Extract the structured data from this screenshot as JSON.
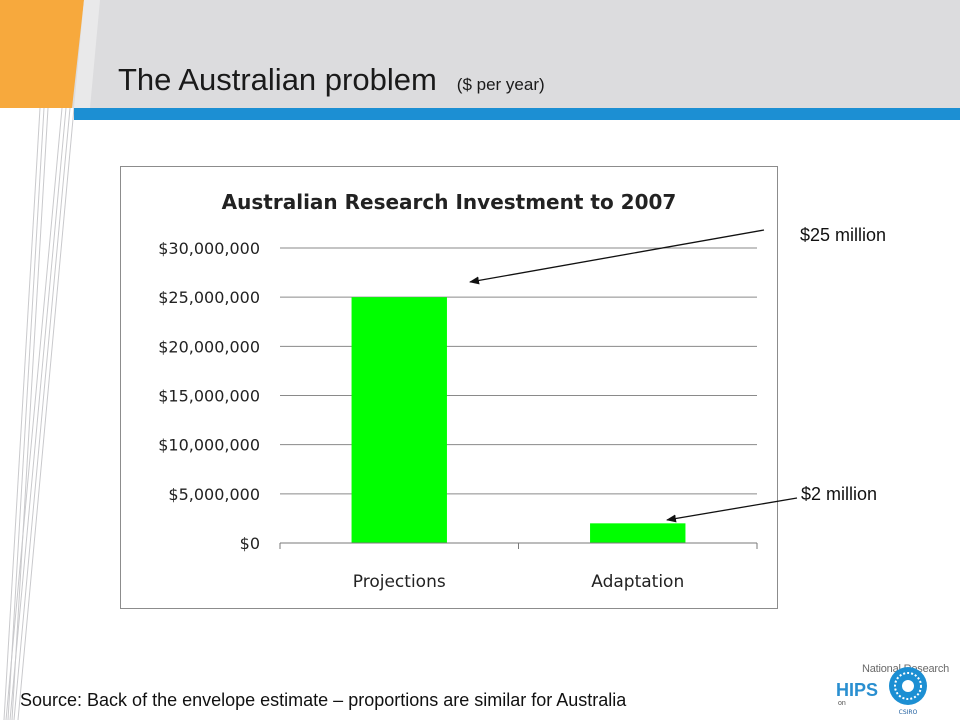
{
  "slide": {
    "title": "The Australian problem",
    "subtitle": "($ per year)",
    "source": "Source: Back of the envelope estimate – proportions are similar for Australia",
    "colors": {
      "accent_orange": "#f7a93d",
      "accent_blue": "#1c8fd3",
      "header_gray": "#dcdcde"
    }
  },
  "callouts": {
    "projections": "$25 million",
    "adaptation": "$2 million"
  },
  "logo": {
    "line1": "National Research",
    "line2": "HIPS",
    "line3": "on",
    "seal_text": "CSIRO"
  },
  "chart_data": {
    "type": "bar",
    "title": "Australian Research Investment to 2007",
    "categories": [
      "Projections",
      "Adaptation"
    ],
    "values": [
      25000000,
      2000000
    ],
    "ylim": [
      0,
      30000000
    ],
    "yticks": [
      0,
      5000000,
      10000000,
      15000000,
      20000000,
      25000000,
      30000000
    ],
    "ytick_labels": [
      "$0",
      "$5,000,000",
      "$10,000,000",
      "$15,000,000",
      "$20,000,000",
      "$25,000,000",
      "$30,000,000"
    ],
    "grid": true,
    "legend": "none",
    "bar_color": "#00ff00"
  }
}
